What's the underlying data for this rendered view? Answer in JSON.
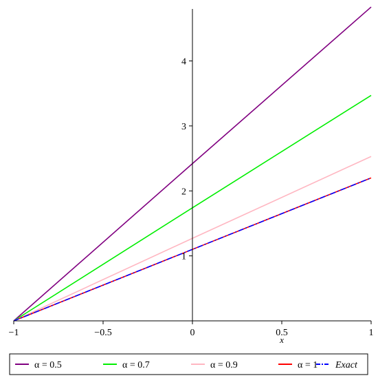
{
  "chart_data": {
    "type": "line",
    "title": "",
    "xlabel": "x",
    "ylabel": "",
    "xlim": [
      -1,
      1
    ],
    "ylim": [
      0,
      4.8
    ],
    "x_ticks": [
      -1,
      -0.5,
      0,
      0.5,
      1
    ],
    "x_tick_labels": [
      "−1",
      "−0.5",
      "0",
      "0.5",
      "1"
    ],
    "y_ticks": [
      1,
      2,
      3,
      4
    ],
    "y_tick_labels": [
      "1",
      "2",
      "3",
      "4"
    ],
    "grid": false,
    "legend_position": "bottom",
    "series": [
      {
        "name": "α = 0.5",
        "color": "#800080",
        "dash": "solid",
        "x": [
          -1,
          0,
          1
        ],
        "y": [
          0,
          2.42,
          4.83
        ]
      },
      {
        "name": "α = 0.7",
        "color": "#00ee00",
        "dash": "solid",
        "x": [
          -1,
          0,
          1
        ],
        "y": [
          0,
          1.74,
          3.47
        ]
      },
      {
        "name": "α = 0.9",
        "color": "#ffb6c1",
        "dash": "solid",
        "x": [
          -1,
          0,
          1
        ],
        "y": [
          0,
          1.27,
          2.53
        ]
      },
      {
        "name": "α = 1",
        "color": "#ff0000",
        "dash": "solid",
        "x": [
          -1,
          0,
          1
        ],
        "y": [
          0,
          1.1,
          2.2
        ]
      },
      {
        "name": "Exact",
        "color": "#0000ff",
        "dash": "dashdot",
        "x": [
          -1,
          0,
          1
        ],
        "y": [
          0,
          1.1,
          2.2
        ]
      }
    ]
  }
}
